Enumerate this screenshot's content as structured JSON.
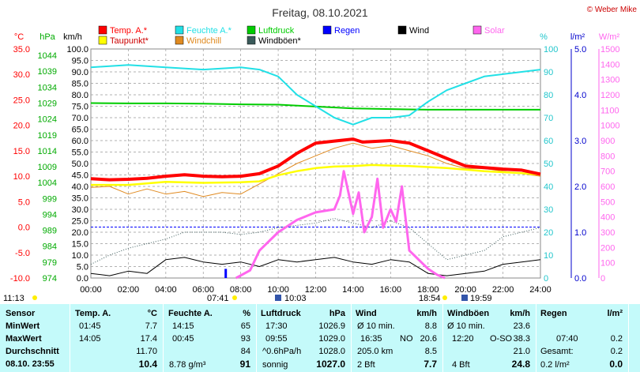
{
  "title": "Freitag, 08.10.2021",
  "copyright": "© Weber Mike",
  "colors": {
    "temp": "#ff0000",
    "feuchte": "#22e0e6",
    "luftdruck": "#00cc00",
    "regen": "#0000ff",
    "wind": "#000000",
    "solar": "#ff66ee",
    "taupunkt": "#ffff00",
    "windchill": "#e08a20",
    "windboeen": "#3a5a5a",
    "table_bg": "#c4fafa"
  },
  "legend": [
    {
      "label": "Temp. A.*",
      "color_key": "temp"
    },
    {
      "label": "Feuchte A.*",
      "color_key": "feuchte"
    },
    {
      "label": "Luftdruck",
      "color_key": "luftdruck"
    },
    {
      "label": "Regen",
      "color_key": "regen"
    },
    {
      "label": "Wind",
      "color_key": "wind"
    },
    {
      "label": "Solar",
      "color_key": "solar"
    },
    {
      "label": "Taupunkt*",
      "color_key": "taupunkt"
    },
    {
      "label": "Windchill",
      "color_key": "windchill"
    },
    {
      "label": "Windböen*",
      "color_key": "windboeen"
    }
  ],
  "chart_data": {
    "type": "line",
    "title": "Freitag, 08.10.2021",
    "x_ticks": [
      "00:00",
      "02:00",
      "04:00",
      "06:00",
      "08:00",
      "10:00",
      "12:00",
      "14:00",
      "16:00",
      "18:00",
      "20:00",
      "22:00",
      "24:00"
    ],
    "axes": {
      "temp": {
        "unit": "°C",
        "range": [
          -10,
          35
        ],
        "ticks": [
          "35.0",
          "30.0",
          "25.0",
          "20.0",
          "15.0",
          "10.0",
          "5.0",
          "0.0",
          "-5.0",
          "-10.0"
        ]
      },
      "pressure": {
        "unit": "hPa",
        "range": [
          974,
          1046
        ],
        "ticks": [
          "1044",
          "1039",
          "1034",
          "1029",
          "1024",
          "1019",
          "1014",
          "1009",
          "1004",
          "999",
          "994",
          "989",
          "984",
          "979",
          "974"
        ]
      },
      "wind": {
        "unit": "km/h",
        "range": [
          0,
          100
        ],
        "ticks": [
          "100.0",
          "95.0",
          "90.0",
          "85.0",
          "80.0",
          "75.0",
          "70.0",
          "65.0",
          "60.0",
          "55.0",
          "50.0",
          "45.0",
          "40.0",
          "35.0",
          "30.0",
          "25.0",
          "20.0",
          "15.0",
          "10.0",
          "5.0",
          "0.0"
        ]
      },
      "humidity": {
        "unit": "%",
        "range": [
          0,
          100
        ],
        "ticks": [
          "100",
          "90",
          "80",
          "70",
          "60",
          "50",
          "40",
          "30",
          "20",
          "10",
          "0"
        ]
      },
      "rain": {
        "unit": "l/m²",
        "range": [
          0,
          5
        ],
        "ticks": [
          "5.0",
          "4.0",
          "3.0",
          "2.0",
          "1.0",
          "0.0"
        ]
      },
      "solar": {
        "unit": "W/m²",
        "range": [
          0,
          1500
        ],
        "ticks": [
          "1500",
          "1400",
          "1300",
          "1200",
          "1100",
          "1000",
          "900",
          "800",
          "700",
          "600",
          "500",
          "400",
          "300",
          "200",
          "100",
          "0"
        ]
      }
    },
    "series": [
      {
        "name": "Temp. A.*",
        "axis": "temp",
        "x": [
          0,
          1,
          2,
          3,
          4,
          5,
          6,
          7,
          8,
          9,
          10,
          11,
          12,
          13,
          14,
          14.5,
          15,
          16,
          17,
          18,
          19,
          20,
          21,
          22,
          23,
          24
        ],
        "y": [
          9.5,
          9.3,
          9.4,
          9.6,
          10.0,
          10.3,
          10.0,
          9.9,
          10.0,
          10.5,
          12.0,
          14.5,
          16.5,
          16.9,
          17.3,
          16.7,
          16.8,
          17.0,
          16.5,
          15.0,
          13.5,
          12.0,
          11.7,
          11.4,
          11.2,
          10.4
        ]
      },
      {
        "name": "Taupunkt*",
        "axis": "temp",
        "x": [
          0,
          2,
          4,
          6,
          8,
          9,
          10,
          11,
          12,
          13,
          14,
          15,
          16,
          17,
          18,
          19,
          20,
          21,
          22,
          23,
          24
        ],
        "y": [
          8.3,
          8.3,
          8.9,
          8.7,
          8.8,
          9.0,
          10.2,
          11.0,
          11.6,
          11.9,
          12.0,
          12.2,
          12.1,
          12.0,
          11.8,
          11.6,
          11.3,
          11.0,
          10.8,
          10.6,
          10.3
        ]
      },
      {
        "name": "Feuchte A.*",
        "axis": "humidity",
        "x": [
          0,
          2,
          4,
          6,
          8,
          9,
          10,
          11,
          12,
          13,
          14,
          15,
          16,
          17,
          18,
          19,
          20,
          21,
          22,
          23,
          24
        ],
        "y": [
          92,
          93,
          92,
          91,
          92,
          91,
          88,
          80,
          75,
          70,
          67,
          70,
          70,
          71,
          77,
          82,
          85,
          88,
          89,
          90,
          91
        ]
      },
      {
        "name": "Luftdruck",
        "axis": "pressure",
        "x": [
          0,
          2,
          4,
          6,
          8,
          10,
          12,
          14,
          16,
          18,
          20,
          22,
          24
        ],
        "y": [
          1029.0,
          1028.9,
          1028.9,
          1028.8,
          1028.6,
          1028.5,
          1027.9,
          1027.3,
          1027.1,
          1026.9,
          1026.9,
          1026.9,
          1026.9
        ]
      },
      {
        "name": "Windchill",
        "axis": "temp",
        "x": [
          0,
          1,
          2,
          3,
          4,
          5,
          6,
          7,
          8,
          9,
          10,
          11,
          12,
          13,
          14,
          15,
          16,
          17,
          18,
          19,
          20,
          21,
          22,
          23,
          24
        ],
        "y": [
          7.8,
          8.0,
          6.5,
          7.5,
          6.5,
          7.0,
          6.0,
          6.8,
          6.5,
          8.5,
          10.5,
          12.5,
          14.0,
          15.5,
          16.5,
          15.5,
          16.0,
          15.0,
          14.0,
          12.5,
          11.5,
          11.5,
          11.0,
          10.5,
          10.0
        ]
      },
      {
        "name": "Wind",
        "axis": "wind",
        "x": [
          0,
          1,
          2,
          3,
          4,
          5,
          6,
          7,
          8,
          9,
          10,
          11,
          12,
          13,
          14,
          15,
          16,
          17,
          18,
          19,
          20,
          21,
          22,
          23,
          24
        ],
        "y": [
          2,
          1,
          3,
          2,
          8,
          9,
          7,
          6,
          7,
          5,
          8,
          7,
          8,
          9,
          7,
          6,
          8,
          7,
          2,
          1,
          2,
          3,
          6,
          7,
          8
        ]
      },
      {
        "name": "Windböen*",
        "axis": "wind",
        "x": [
          0,
          1,
          2,
          3,
          4,
          5,
          6,
          7,
          8,
          9,
          10,
          11,
          12,
          13,
          14,
          15,
          16,
          17,
          18,
          19,
          20,
          21,
          22,
          23,
          24
        ],
        "y": [
          6,
          10,
          13,
          15,
          17,
          20,
          20,
          20,
          19,
          20,
          22,
          23,
          24,
          26,
          24,
          22,
          25,
          22,
          15,
          8,
          10,
          12,
          18,
          20,
          22
        ]
      },
      {
        "name": "Solar",
        "axis": "solar",
        "x": [
          7.75,
          8.5,
          9,
          10,
          11,
          12,
          13,
          13.3,
          13.5,
          14,
          14.3,
          14.6,
          15,
          15.3,
          15.6,
          16,
          16.3,
          16.6,
          17,
          17.5,
          18,
          18.5,
          18.9
        ],
        "y": [
          0,
          50,
          180,
          300,
          380,
          430,
          450,
          540,
          700,
          420,
          560,
          300,
          400,
          650,
          330,
          450,
          370,
          600,
          180,
          120,
          60,
          20,
          0
        ]
      },
      {
        "name": "Regen",
        "axis": "rain",
        "x": [
          7.2
        ],
        "y": [
          0.2
        ]
      }
    ],
    "markers": {
      "sunrise_label": "07:41",
      "sunset_label": "18:54",
      "moonrise_label": "10:03",
      "moonset_label": "19:59",
      "daylength_label": "11:13"
    }
  },
  "table": {
    "headers": [
      {
        "label": "Sensor",
        "unit": ""
      },
      {
        "label": "Temp. A.",
        "unit": "°C"
      },
      {
        "label": "Feuchte A.",
        "unit": "%"
      },
      {
        "label": "Luftdruck",
        "unit": "hPa"
      },
      {
        "label": "Wind",
        "unit": "km/h"
      },
      {
        "label": "Windböen",
        "unit": "km/h"
      },
      {
        "label": "Regen",
        "unit": "l/m²"
      }
    ],
    "row_labels": [
      "MinWert",
      "MaxWert",
      "Durchschnitt",
      "08.10. 23:55"
    ],
    "temp": [
      [
        "01:45",
        "7.7"
      ],
      [
        "14:05",
        "17.4"
      ],
      [
        "",
        "11.70"
      ],
      [
        "",
        "10.4"
      ]
    ],
    "feuchte": [
      [
        "14:15",
        "65"
      ],
      [
        "00:45",
        "93"
      ],
      [
        "",
        "84"
      ],
      [
        "8.78 g/m³",
        "91"
      ]
    ],
    "luftdruck": [
      [
        "17:30",
        "1026.9"
      ],
      [
        "09:55",
        "1029.0"
      ],
      [
        "^0.6hPa/h",
        "1028.0"
      ],
      [
        "sonnig",
        "1027.0"
      ]
    ],
    "wind": [
      [
        "Ø 10 min.",
        "",
        "8.8"
      ],
      [
        "16:35",
        "NO",
        "20.6"
      ],
      [
        "205.0 km",
        "",
        "8.5"
      ],
      [
        "2 Bft",
        "",
        "7.7"
      ]
    ],
    "windboeen": [
      [
        "Ø 10 min.",
        "",
        "23.6"
      ],
      [
        "12:20",
        "O-SO",
        "38.3"
      ],
      [
        "",
        "",
        "21.0"
      ],
      [
        "4 Bft",
        "",
        "24.8"
      ]
    ],
    "regen": [
      [
        "",
        ""
      ],
      [
        "07:40",
        "0.2"
      ],
      [
        "Gesamt:",
        "0.2"
      ],
      [
        "0.2 l/m²",
        "0.0"
      ]
    ]
  }
}
